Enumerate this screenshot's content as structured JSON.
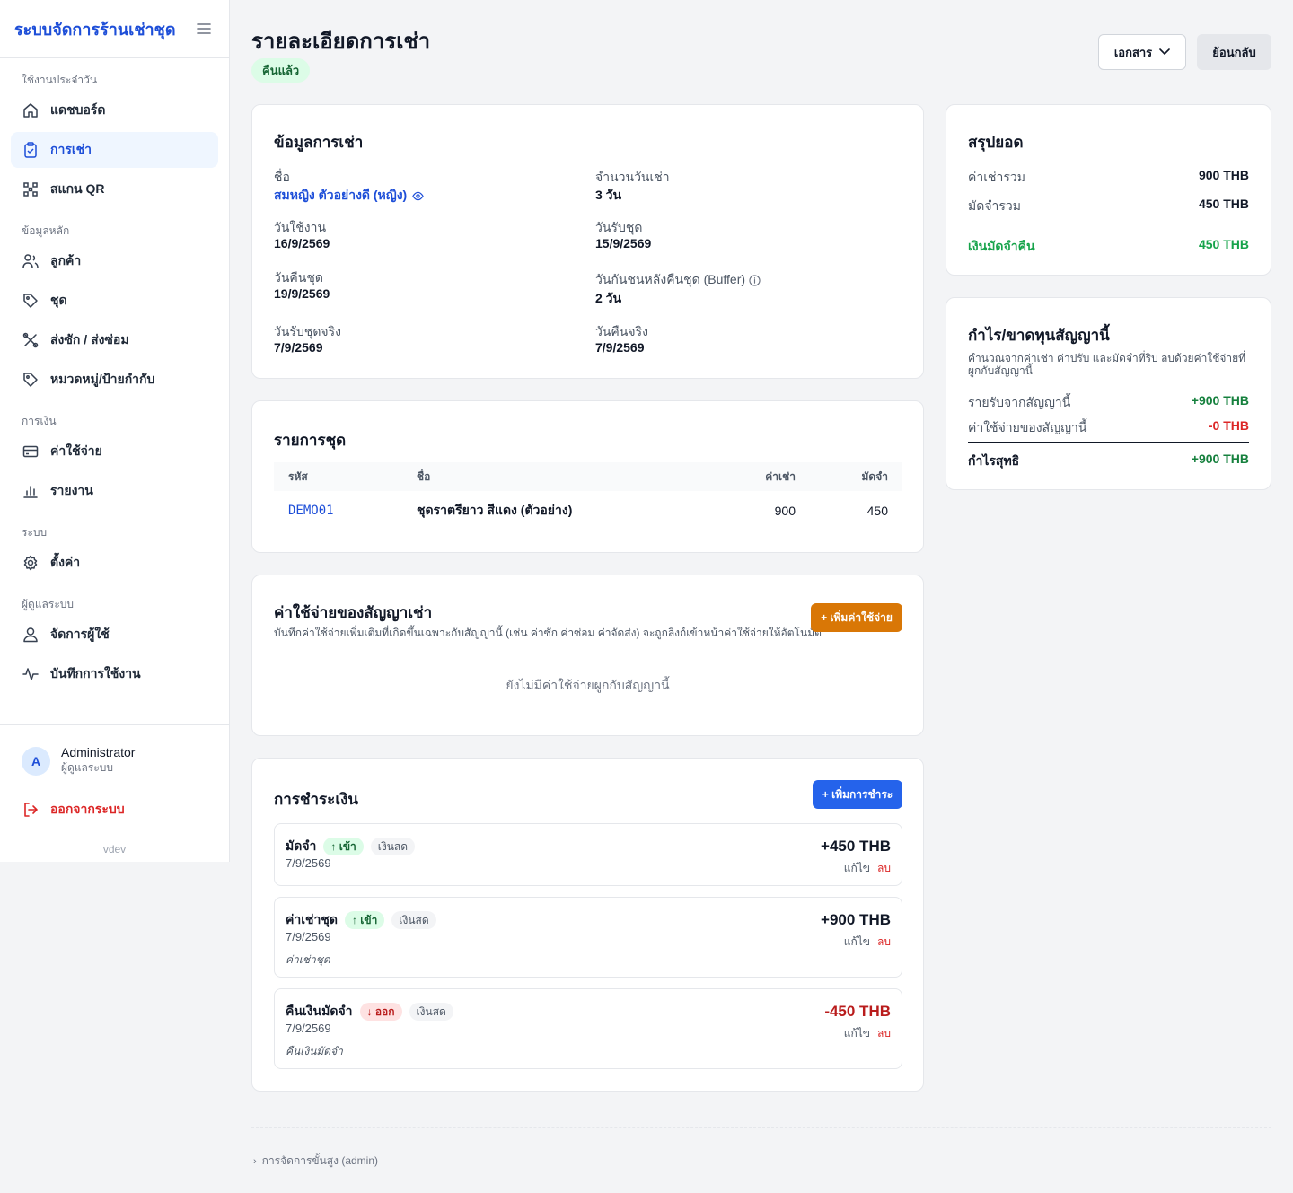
{
  "sidebar": {
    "brand": "ระบบจัดการร้านเช่าชุด",
    "sections": [
      {
        "title": "ใช้งานประจำวัน",
        "items": [
          {
            "label": "แดชบอร์ด",
            "icon": "home-icon",
            "active": false
          },
          {
            "label": "การเช่า",
            "icon": "clipboard-icon",
            "active": true
          },
          {
            "label": "สแกน QR",
            "icon": "qr-icon",
            "active": false
          }
        ]
      },
      {
        "title": "ข้อมูลหลัก",
        "items": [
          {
            "label": "ลูกค้า",
            "icon": "users-icon",
            "active": false
          },
          {
            "label": "ชุด",
            "icon": "tag-icon",
            "active": false
          },
          {
            "label": "ส่งซัก / ส่งซ่อม",
            "icon": "tools-icon",
            "active": false
          },
          {
            "label": "หมวดหมู่/ป้ายกำกับ",
            "icon": "tag-icon",
            "active": false
          }
        ]
      },
      {
        "title": "การเงิน",
        "items": [
          {
            "label": "ค่าใช้จ่าย",
            "icon": "card-icon",
            "active": false
          },
          {
            "label": "รายงาน",
            "icon": "bar-chart-icon",
            "active": false
          }
        ]
      },
      {
        "title": "ระบบ",
        "items": [
          {
            "label": "ตั้งค่า",
            "icon": "gear-icon",
            "active": false
          }
        ]
      },
      {
        "title": "ผู้ดูแลระบบ",
        "items": [
          {
            "label": "จัดการผู้ใช้",
            "icon": "user-icon",
            "active": false
          },
          {
            "label": "บันทึกการใช้งาน",
            "icon": "activity-icon",
            "active": false
          }
        ]
      }
    ],
    "user": {
      "initial": "A",
      "name": "Administrator",
      "role": "ผู้ดูแลระบบ"
    },
    "logout": "ออกจากระบบ",
    "version": "vdev"
  },
  "header": {
    "title": "รายละเอียดการเช่า",
    "status": "คืนแล้ว",
    "docs_label": "เอกสาร",
    "back_label": "ย้อนกลับ"
  },
  "rental_info": {
    "title": "ข้อมูลการเช่า",
    "name_label": "ชื่อ",
    "name_value": "สมหญิง ตัวอย่างดี (หญิง)",
    "days_label": "จำนวนวันเช่า",
    "days_value": "3 วัน",
    "use_date_label": "วันใช้งาน",
    "use_date_value": "16/9/2569",
    "pickup_label": "วันรับชุด",
    "pickup_value": "15/9/2569",
    "return_label": "วันคืนชุด",
    "return_value": "19/9/2569",
    "buffer_label": "วันกันชนหลังคืนชุด (Buffer)",
    "buffer_value": "2 วัน",
    "actual_pickup_label": "วันรับชุดจริง",
    "actual_pickup_value": "7/9/2569",
    "actual_return_label": "วันคืนจริง",
    "actual_return_value": "7/9/2569"
  },
  "items": {
    "title": "รายการชุด",
    "headers": {
      "code": "รหัส",
      "name": "ชื่อ",
      "rent": "ค่าเช่า",
      "deposit": "มัดจำ"
    },
    "rows": [
      {
        "code": "DEMO01",
        "name": "ชุดราตรียาว สีแดง (ตัวอย่าง)",
        "rent": "900",
        "deposit": "450"
      }
    ]
  },
  "expenses": {
    "title": "ค่าใช้จ่ายของสัญญาเช่า",
    "description": "บันทึกค่าใช้จ่ายเพิ่มเติมที่เกิดขึ้นเฉพาะกับสัญญานี้ (เช่น ค่าซัก ค่าซ่อม ค่าจัดส่ง) จะถูกลิงก์เข้าหน้าค่าใช้จ่ายให้อัตโนมัติ",
    "add_label": "+ เพิ่มค่าใช้จ่าย",
    "empty": "ยังไม่มีค่าใช้จ่ายผูกกับสัญญานี้"
  },
  "payments": {
    "title": "การชำระเงิน",
    "add_label": "+ เพิ่มการชำระ",
    "edit_label": "แก้ไข",
    "delete_label": "ลบ",
    "list": [
      {
        "name": "มัดจำ",
        "direction": "↑ เข้า",
        "method": "เงินสด",
        "date": "7/9/2569",
        "note": "",
        "amount": "+450 THB"
      },
      {
        "name": "ค่าเช่าชุด",
        "direction": "↑ เข้า",
        "method": "เงินสด",
        "date": "7/9/2569",
        "note": "ค่าเช่าชุด",
        "amount": "+900 THB"
      },
      {
        "name": "คืนเงินมัดจำ",
        "direction": "↓ ออก",
        "method": "เงินสด",
        "date": "7/9/2569",
        "note": "คืนเงินมัดจำ",
        "amount": "-450 THB"
      }
    ]
  },
  "summary": {
    "title": "สรุปยอด",
    "rent_label": "ค่าเช่ารวม",
    "rent_value": "900 THB",
    "deposit_label": "มัดจำรวม",
    "deposit_value": "450 THB",
    "refund_label": "เงินมัดจำคืน",
    "refund_value": "450 THB"
  },
  "profit": {
    "title": "กำไร/ขาดทุนสัญญานี้",
    "description": "คำนวณจากค่าเช่า ค่าปรับ และมัดจำที่ริบ ลบด้วยค่าใช้จ่ายที่ผูกกับสัญญานี้",
    "income_label": "รายรับจากสัญญานี้",
    "income_value": "+900 THB",
    "expense_label": "ค่าใช้จ่ายของสัญญานี้",
    "expense_value": "-0 THB",
    "net_label": "กำไรสุทธิ",
    "net_value": "+900 THB"
  },
  "footer": {
    "admin_link": "การจัดการขั้นสูง (admin)"
  },
  "colors": {
    "primary": "#1d4ed8",
    "success": "#15803d",
    "danger": "#dc2626",
    "warning": "#d97706"
  }
}
